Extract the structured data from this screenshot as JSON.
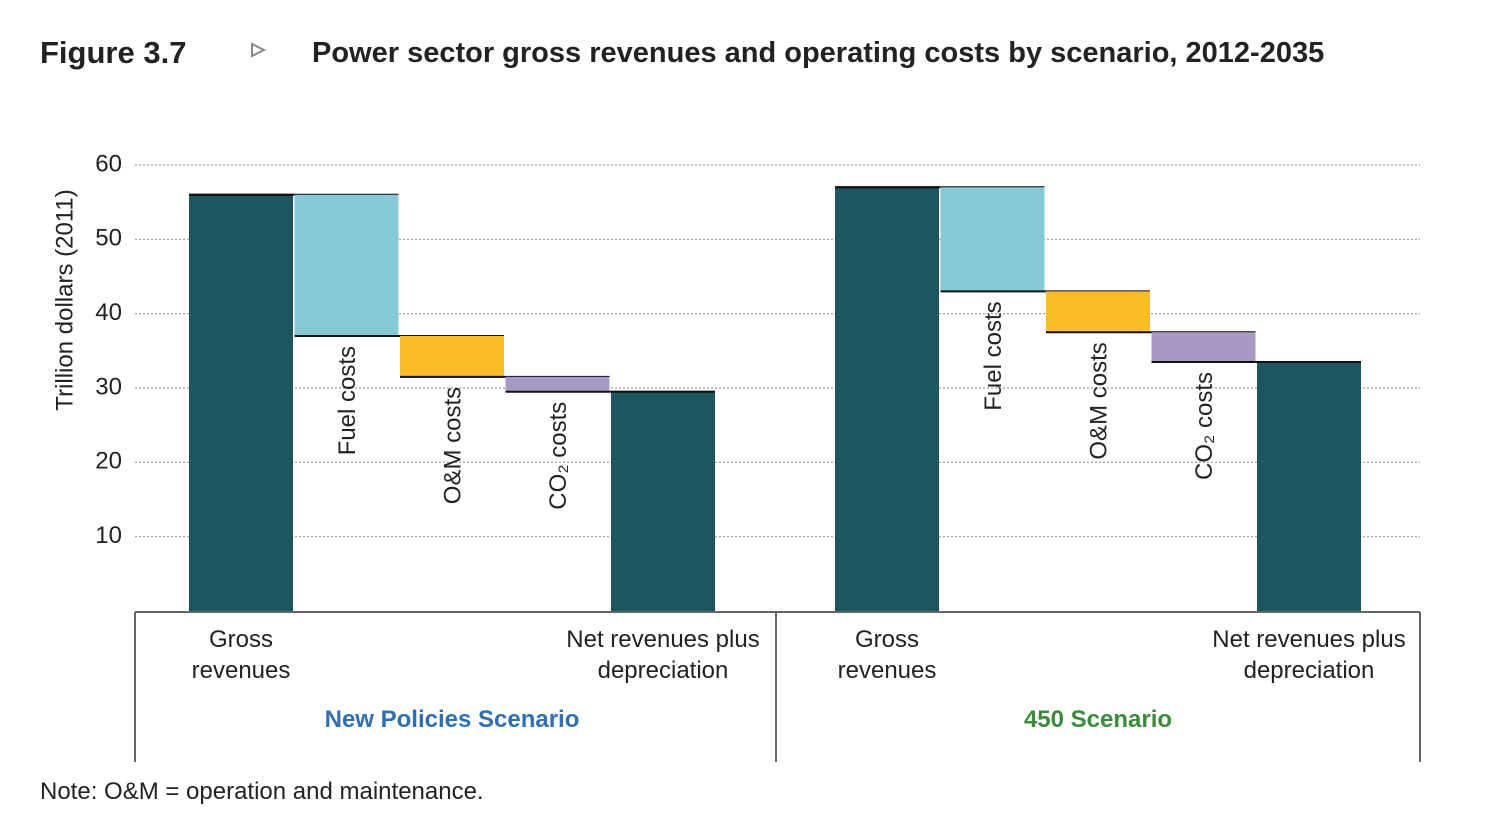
{
  "chart_data": {
    "type": "waterfall",
    "figure_label": "Figure 3.7",
    "title": "Power sector gross revenues and operating costs by scenario, 2012-2035",
    "y_label": "Trillion dollars (2011)",
    "ylim": [
      0,
      60
    ],
    "yticks": [
      10,
      20,
      30,
      40,
      50,
      60
    ],
    "grid": true,
    "categories": [
      "Gross revenues",
      "Fuel costs",
      "O&M costs",
      "CO₂ costs",
      "Net revenues plus depreciation"
    ],
    "measures": [
      "absolute",
      "relative",
      "relative",
      "relative",
      "total"
    ],
    "colors": [
      "#1d5561",
      "#87cad6",
      "#fbbc2a",
      "#a898c4",
      "#1d5561"
    ],
    "groups": [
      {
        "name": "New Policies Scenario",
        "name_color": "#2f6fb6",
        "values": [
          56,
          -19,
          -5.5,
          -2,
          29.5
        ]
      },
      {
        "name": "450 Scenario",
        "name_color": "#3b8b3b",
        "values": [
          57,
          -14,
          -5.5,
          -4,
          33.5
        ]
      }
    ],
    "note": "Note: O&M = operation and maintenance."
  }
}
